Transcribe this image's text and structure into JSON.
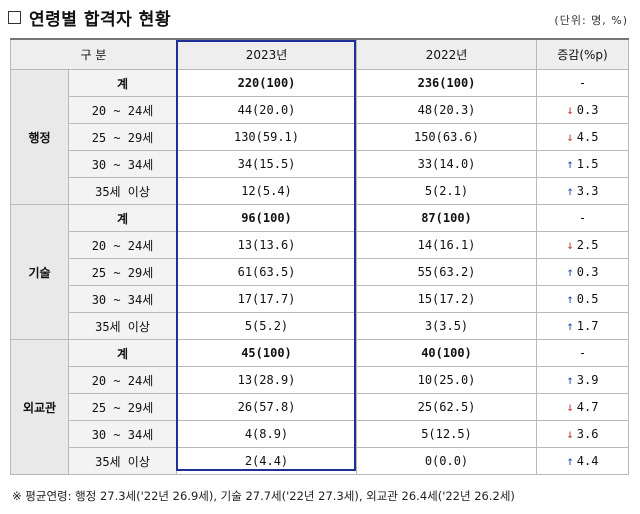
{
  "title": "연령별 합격자 현황",
  "unit": "(단위: 명, %)",
  "header": {
    "category": "구 분",
    "y2023": "2023년",
    "y2022": "2022년",
    "change": "증감(%p)"
  },
  "groups": [
    {
      "name": "행정",
      "rows": [
        {
          "label": "계",
          "y2023": "220(100)",
          "y2022": "236(100)",
          "dir": "",
          "change": "-"
        },
        {
          "label": "20 ~ 24세",
          "y2023": "44(20.0)",
          "y2022": "48(20.3)",
          "dir": "down",
          "change": "0.3"
        },
        {
          "label": "25 ~ 29세",
          "y2023": "130(59.1)",
          "y2022": "150(63.6)",
          "dir": "down",
          "change": "4.5"
        },
        {
          "label": "30 ~ 34세",
          "y2023": "34(15.5)",
          "y2022": "33(14.0)",
          "dir": "up",
          "change": "1.5"
        },
        {
          "label": "35세 이상",
          "y2023": "12(5.4)",
          "y2022": "5(2.1)",
          "dir": "up",
          "change": "3.3"
        }
      ]
    },
    {
      "name": "기술",
      "rows": [
        {
          "label": "계",
          "y2023": "96(100)",
          "y2022": "87(100)",
          "dir": "",
          "change": "-"
        },
        {
          "label": "20 ~ 24세",
          "y2023": "13(13.6)",
          "y2022": "14(16.1)",
          "dir": "down",
          "change": "2.5"
        },
        {
          "label": "25 ~ 29세",
          "y2023": "61(63.5)",
          "y2022": "55(63.2)",
          "dir": "up",
          "change": "0.3"
        },
        {
          "label": "30 ~ 34세",
          "y2023": "17(17.7)",
          "y2022": "15(17.2)",
          "dir": "up",
          "change": "0.5"
        },
        {
          "label": "35세 이상",
          "y2023": "5(5.2)",
          "y2022": "3(3.5)",
          "dir": "up",
          "change": "1.7"
        }
      ]
    },
    {
      "name": "외교관",
      "rows": [
        {
          "label": "계",
          "y2023": "45(100)",
          "y2022": "40(100)",
          "dir": "",
          "change": "-"
        },
        {
          "label": "20 ~ 24세",
          "y2023": "13(28.9)",
          "y2022": "10(25.0)",
          "dir": "up",
          "change": "3.9"
        },
        {
          "label": "25 ~ 29세",
          "y2023": "26(57.8)",
          "y2022": "25(62.5)",
          "dir": "down",
          "change": "4.7"
        },
        {
          "label": "30 ~ 34세",
          "y2023": "4(8.9)",
          "y2022": "5(12.5)",
          "dir": "down",
          "change": "3.6"
        },
        {
          "label": "35세 이상",
          "y2023": "2(4.4)",
          "y2022": "0(0.0)",
          "dir": "up",
          "change": "4.4"
        }
      ]
    }
  ],
  "arrows": {
    "up": "↑",
    "down": "↓"
  },
  "colors": {
    "up": "#1f4fa8",
    "down": "#c0392b",
    "highlight_frame": "#1f2f9a"
  },
  "footnote": "※ 평균연령: 행정 27.3세('22년 26.9세), 기술 27.7세('22년 27.3세), 외교관 26.4세('22년 26.2세)"
}
